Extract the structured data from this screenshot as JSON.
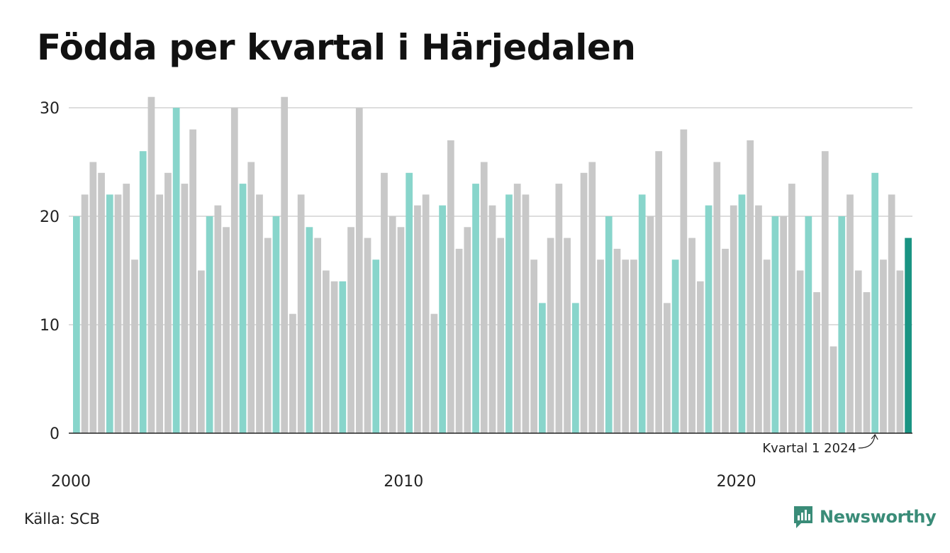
{
  "title": "Födda per kvartal i Härjedalen",
  "source": "Källa: SCB",
  "brand": {
    "name": "Newsworthy",
    "icon": "newsworthy-logo-icon"
  },
  "colors": {
    "q1": "#88d5cb",
    "other": "#c8c8c8",
    "latest": "#1a9483",
    "grid": "#dddddd",
    "brand": "#3a8c78"
  },
  "chart_data": {
    "type": "bar",
    "title": "Födda per kvartal i Härjedalen",
    "xlabel": "",
    "ylabel": "",
    "ylim": [
      0,
      30
    ],
    "yticks": [
      0,
      10,
      20,
      30
    ],
    "xticks": [
      "2000",
      "2010",
      "2020"
    ],
    "grid": true,
    "start_year": 2000,
    "values": [
      20,
      22,
      25,
      24,
      22,
      22,
      23,
      16,
      26,
      31,
      22,
      24,
      30,
      23,
      28,
      15,
      20,
      21,
      19,
      30,
      23,
      25,
      22,
      18,
      20,
      31,
      11,
      22,
      19,
      18,
      15,
      14,
      14,
      19,
      30,
      18,
      16,
      24,
      20,
      19,
      24,
      21,
      22,
      11,
      21,
      27,
      17,
      19,
      23,
      25,
      21,
      18,
      22,
      23,
      22,
      16,
      12,
      18,
      23,
      18,
      12,
      24,
      25,
      16,
      20,
      17,
      16,
      16,
      22,
      20,
      26,
      12,
      16,
      28,
      18,
      14,
      21,
      25,
      17,
      21,
      22,
      27,
      21,
      16,
      20,
      20,
      23,
      15,
      20,
      13,
      26,
      8,
      20,
      22,
      15,
      13,
      24,
      16,
      22,
      15,
      18
    ],
    "annotation": "Kvartal 1 2024"
  }
}
